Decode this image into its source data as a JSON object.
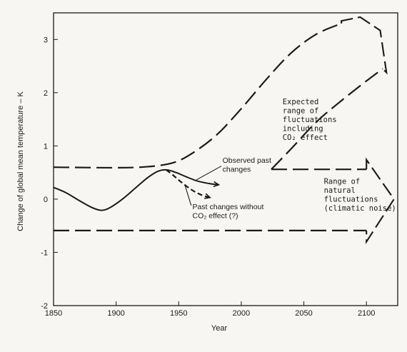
{
  "chart_data": {
    "type": "line",
    "xlabel": "Year",
    "ylabel": "Change of global mean temperature – K",
    "xlim": [
      1850,
      2125
    ],
    "ylim": [
      -2,
      3.5
    ],
    "xticks": [
      1850,
      1900,
      1950,
      2000,
      2050,
      2100
    ],
    "yticks": [
      -2,
      -1,
      0,
      1,
      2,
      3
    ],
    "grid": false,
    "series": [
      {
        "key": "observed",
        "style": "solid",
        "x": [
          1850,
          1860,
          1870,
          1880,
          1888,
          1895,
          1905,
          1915,
          1925,
          1933,
          1940,
          1948,
          1956,
          1965,
          1975,
          1982
        ],
        "y": [
          0.22,
          0.12,
          -0.02,
          -0.15,
          -0.21,
          -0.16,
          0.0,
          0.2,
          0.4,
          0.52,
          0.55,
          0.5,
          0.42,
          0.34,
          0.29,
          0.27
        ]
      },
      {
        "key": "without_co2",
        "style": "dashed",
        "x": [
          1940,
          1945,
          1952,
          1960,
          1968,
          1975
        ],
        "y": [
          0.55,
          0.46,
          0.32,
          0.18,
          0.08,
          0.03
        ]
      },
      {
        "key": "expected_lower",
        "style": "dashed",
        "x": [
          2024,
          2040,
          2060,
          2080,
          2100,
          2113
        ],
        "y": [
          0.56,
          0.95,
          1.45,
          1.85,
          2.22,
          2.45
        ]
      },
      {
        "key": "expected_upper",
        "style": "dashed",
        "x": [
          1850,
          1900,
          1925,
          1945,
          1960,
          1980,
          2000,
          2020,
          2040,
          2060,
          2080
        ],
        "y": [
          0.6,
          0.59,
          0.61,
          0.68,
          0.85,
          1.2,
          1.7,
          2.25,
          2.75,
          3.1,
          3.3
        ]
      },
      {
        "key": "natural_upper",
        "style": "dashed",
        "x": [
          2024,
          2100
        ],
        "y": [
          0.56,
          0.56
        ]
      },
      {
        "key": "natural_lower",
        "style": "dashed",
        "x": [
          1850,
          2100
        ],
        "y": [
          -0.59,
          -0.59
        ]
      }
    ],
    "annotations": [
      {
        "key": "observed",
        "lines": [
          "Observed past",
          "changes"
        ],
        "at": [
          1985,
          0.68
        ],
        "font": "sans"
      },
      {
        "key": "without",
        "lines": [
          "Past changes without",
          "CO₂ effect (?)"
        ],
        "at": [
          1961,
          -0.19
        ],
        "font": "sans"
      },
      {
        "key": "expected",
        "lines": [
          "Expected",
          "range of",
          "fluctuations",
          "including",
          "CO₂ effect"
        ],
        "at": [
          2033,
          1.78
        ],
        "font": "mono"
      },
      {
        "key": "natural",
        "lines": [
          "Range of",
          "natural",
          "fluctuations",
          "(climatic noise)"
        ],
        "at": [
          2066,
          0.29
        ],
        "font": "mono"
      }
    ]
  },
  "colors": {
    "ink": "#1a1a1a",
    "paper": "#f7f6f2"
  }
}
